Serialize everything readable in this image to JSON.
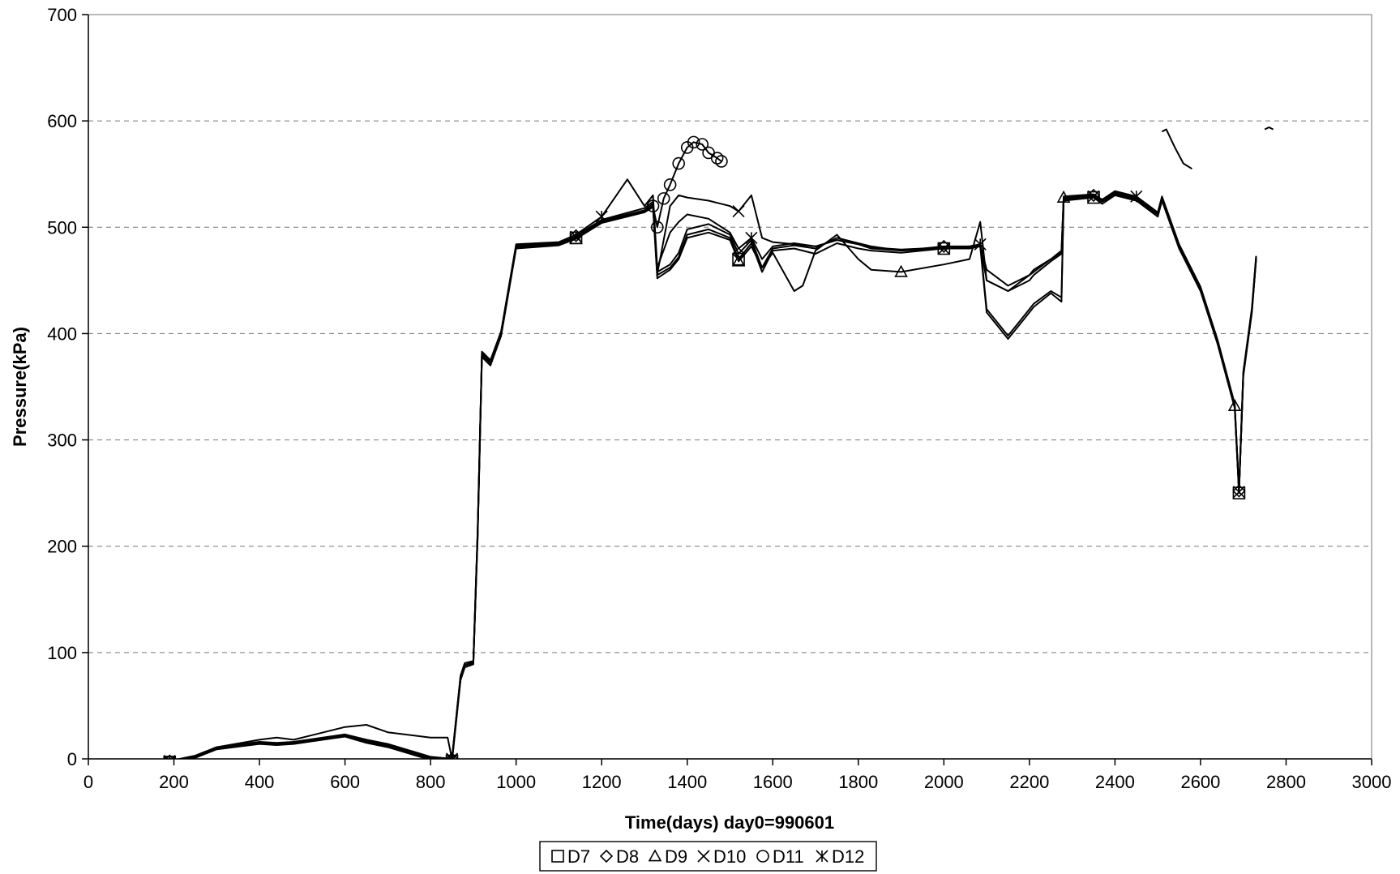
{
  "chart_data": {
    "type": "line",
    "title": "",
    "xlabel": "Time(days)    day0=990601",
    "ylabel": "Pressure(kPa)",
    "xlim": [
      0,
      3000
    ],
    "ylim": [
      0,
      700
    ],
    "xticks": [
      0,
      200,
      400,
      600,
      800,
      1000,
      1200,
      1400,
      1600,
      1800,
      2000,
      2200,
      2400,
      2600,
      2800,
      3000
    ],
    "yticks": [
      0,
      100,
      200,
      300,
      400,
      500,
      600,
      700
    ],
    "grid": "horizontal dashed",
    "legend_position": "bottom",
    "line_color": "#000000",
    "series": [
      {
        "name": "D7",
        "marker": "square",
        "x": [
          190,
          250,
          300,
          400,
          440,
          480,
          600,
          650,
          700,
          800,
          850,
          870,
          880,
          900,
          910,
          920,
          940,
          965,
          1000,
          1100,
          1140,
          1200,
          1300,
          1320,
          1330,
          1360,
          1380,
          1400,
          1450,
          1500,
          1520,
          1550,
          1575,
          1600,
          1650,
          1700,
          1750,
          1800,
          1830,
          1900,
          2000,
          2060,
          2085,
          2100,
          2150,
          2200,
          2210,
          2250,
          2275,
          2280,
          2350,
          2370,
          2400,
          2450,
          2500,
          2510,
          2550,
          2600,
          2640,
          2680,
          2690,
          2700,
          2720,
          2730
        ],
        "y": [
          -3,
          2,
          10,
          15,
          14,
          15,
          22,
          16,
          12,
          0,
          -2,
          75,
          88,
          90,
          210,
          380,
          372,
          401,
          482,
          484,
          490,
          505,
          515,
          520,
          455,
          462,
          472,
          493,
          498,
          490,
          470,
          485,
          458,
          478,
          480,
          475,
          485,
          480,
          478,
          476,
          480,
          480,
          482,
          420,
          395,
          420,
          425,
          438,
          430,
          525,
          528,
          522,
          530,
          525,
          510,
          525,
          480,
          440,
          390,
          330,
          250,
          360,
          420,
          470
        ]
      },
      {
        "name": "D8",
        "marker": "diamond",
        "x": [
          190,
          250,
          300,
          400,
          440,
          480,
          600,
          650,
          700,
          800,
          850,
          870,
          880,
          900,
          910,
          920,
          940,
          965,
          1000,
          1100,
          1140,
          1200,
          1300,
          1320,
          1330,
          1360,
          1380,
          1400,
          1450,
          1500,
          1520,
          1550,
          1575,
          1600,
          1650,
          1700,
          1750,
          1800,
          1830,
          1900,
          2000,
          2060,
          2085,
          2100,
          2150,
          2200,
          2210,
          2250,
          2275,
          2280,
          2350,
          2370,
          2400,
          2450,
          2500,
          2510,
          2550,
          2600,
          2640,
          2680,
          2690,
          2700,
          2720,
          2730
        ],
        "y": [
          -2,
          3,
          11,
          16,
          15,
          16,
          23,
          18,
          14,
          2,
          0,
          78,
          90,
          92,
          215,
          383,
          375,
          402,
          483,
          485,
          492,
          507,
          518,
          524,
          458,
          465,
          476,
          498,
          503,
          493,
          475,
          488,
          462,
          480,
          483,
          480,
          490,
          485,
          482,
          478,
          482,
          482,
          484,
          423,
          398,
          423,
          428,
          440,
          434,
          527,
          530,
          525,
          532,
          527,
          513,
          528,
          483,
          443,
          393,
          333,
          252,
          363,
          423,
          472
        ]
      },
      {
        "name": "D9",
        "marker": "triangle",
        "x": [
          190,
          250,
          300,
          400,
          440,
          480,
          600,
          650,
          700,
          800,
          850,
          870,
          880,
          900,
          910,
          920,
          940,
          965,
          1000,
          1100,
          1140,
          1200,
          1300,
          1320,
          1330,
          1360,
          1380,
          1400,
          1450,
          1500,
          1520,
          1550,
          1575,
          1600,
          1650,
          1670,
          1700,
          1750,
          1800,
          1830,
          1900,
          2000,
          2060,
          2085,
          2100,
          2150,
          2200,
          2210,
          2250,
          2275,
          2280,
          2350,
          2370,
          2400,
          2450,
          2500,
          2510,
          2550,
          2600,
          2640,
          2680,
          2690,
          2700,
          2720,
          2730
        ],
        "y": [
          -4,
          1,
          9,
          14,
          13,
          14,
          21,
          15,
          11,
          -1,
          -3,
          74,
          86,
          89,
          208,
          378,
          370,
          398,
          480,
          483,
          489,
          504,
          514,
          519,
          452,
          460,
          470,
          490,
          495,
          488,
          468,
          482,
          462,
          476,
          440,
          445,
          478,
          493,
          470,
          460,
          458,
          465,
          470,
          505,
          450,
          440,
          455,
          460,
          470,
          478,
          528,
          530,
          526,
          533,
          528,
          512,
          527,
          482,
          442,
          392,
          332,
          251,
          362,
          422,
          471
        ]
      },
      {
        "name": "D10",
        "marker": "x",
        "x": [
          190,
          250,
          300,
          400,
          440,
          480,
          600,
          650,
          700,
          800,
          850,
          870,
          880,
          900,
          910,
          920,
          940,
          965,
          1000,
          1100,
          1140,
          1200,
          1300,
          1320,
          1330,
          1360,
          1380,
          1400,
          1450,
          1500,
          1520,
          1550,
          1575,
          1600,
          1650,
          1700,
          1750,
          1800,
          1830,
          1900,
          2000,
          2060,
          2085,
          2100,
          2150,
          2200,
          2210,
          2250,
          2275,
          2280,
          2350,
          2370,
          2400,
          2450,
          2500,
          2510,
          2550,
          2600,
          2640,
          2680,
          2690,
          2700,
          2720,
          2730
        ],
        "y": [
          -3,
          2,
          10,
          15,
          14,
          15,
          22,
          17,
          13,
          1,
          -1,
          76,
          88,
          91,
          212,
          381,
          373,
          400,
          481,
          484,
          491,
          506,
          516,
          522,
          456,
          520,
          530,
          528,
          525,
          520,
          515,
          530,
          490,
          486,
          484,
          482,
          488,
          484,
          480,
          478,
          480,
          481,
          483,
          450,
          440,
          450,
          455,
          468,
          475,
          526,
          529,
          524,
          531,
          526,
          512,
          526,
          481,
          441,
          391,
          331,
          251,
          361,
          421,
          470
        ]
      },
      {
        "name": "D11",
        "marker": "circle",
        "x": [
          1320,
          1330,
          1345,
          1360,
          1380,
          1400,
          1415,
          1435,
          1450,
          1470,
          1480
        ],
        "y": [
          520,
          500,
          527,
          540,
          560,
          575,
          580,
          578,
          570,
          565,
          562
        ]
      },
      {
        "name": "D12",
        "marker": "asterisk",
        "x": [
          190,
          250,
          300,
          400,
          440,
          480,
          600,
          650,
          700,
          800,
          840,
          850,
          870,
          880,
          900,
          910,
          920,
          940,
          965,
          1000,
          1100,
          1140,
          1200,
          1260,
          1300,
          1320,
          1330,
          1360,
          1380,
          1400,
          1450,
          1500,
          1520,
          1550,
          1575,
          1600,
          1650,
          1700,
          1750,
          1800,
          1830,
          1900,
          2000,
          2060,
          2085,
          2100,
          2150,
          2200,
          2210,
          2250,
          2275,
          2280,
          2350,
          2370,
          2400,
          2450,
          2500,
          2510,
          2550,
          2600,
          2640,
          2680,
          2690,
          2700,
          2720,
          2730
        ],
        "y": [
          -2,
          3,
          11,
          18,
          20,
          18,
          30,
          32,
          25,
          20,
          20,
          0,
          78,
          90,
          92,
          213,
          382,
          374,
          402,
          484,
          486,
          493,
          510,
          545,
          520,
          530,
          462,
          495,
          505,
          512,
          508,
          495,
          480,
          490,
          470,
          482,
          485,
          482,
          488,
          484,
          481,
          479,
          481,
          482,
          484,
          460,
          445,
          455,
          458,
          470,
          476,
          529,
          531,
          526,
          534,
          529,
          514,
          529,
          484,
          444,
          394,
          334,
          253,
          364,
          424,
          473
        ]
      },
      {
        "name": "",
        "x": [
          2510,
          2520,
          2540,
          2560,
          2580
        ],
        "y": [
          590,
          592,
          575,
          560,
          555
        ]
      },
      {
        "name": "",
        "x": [
          2750,
          2760,
          2770
        ],
        "y": [
          592,
          594,
          592
        ]
      }
    ]
  }
}
